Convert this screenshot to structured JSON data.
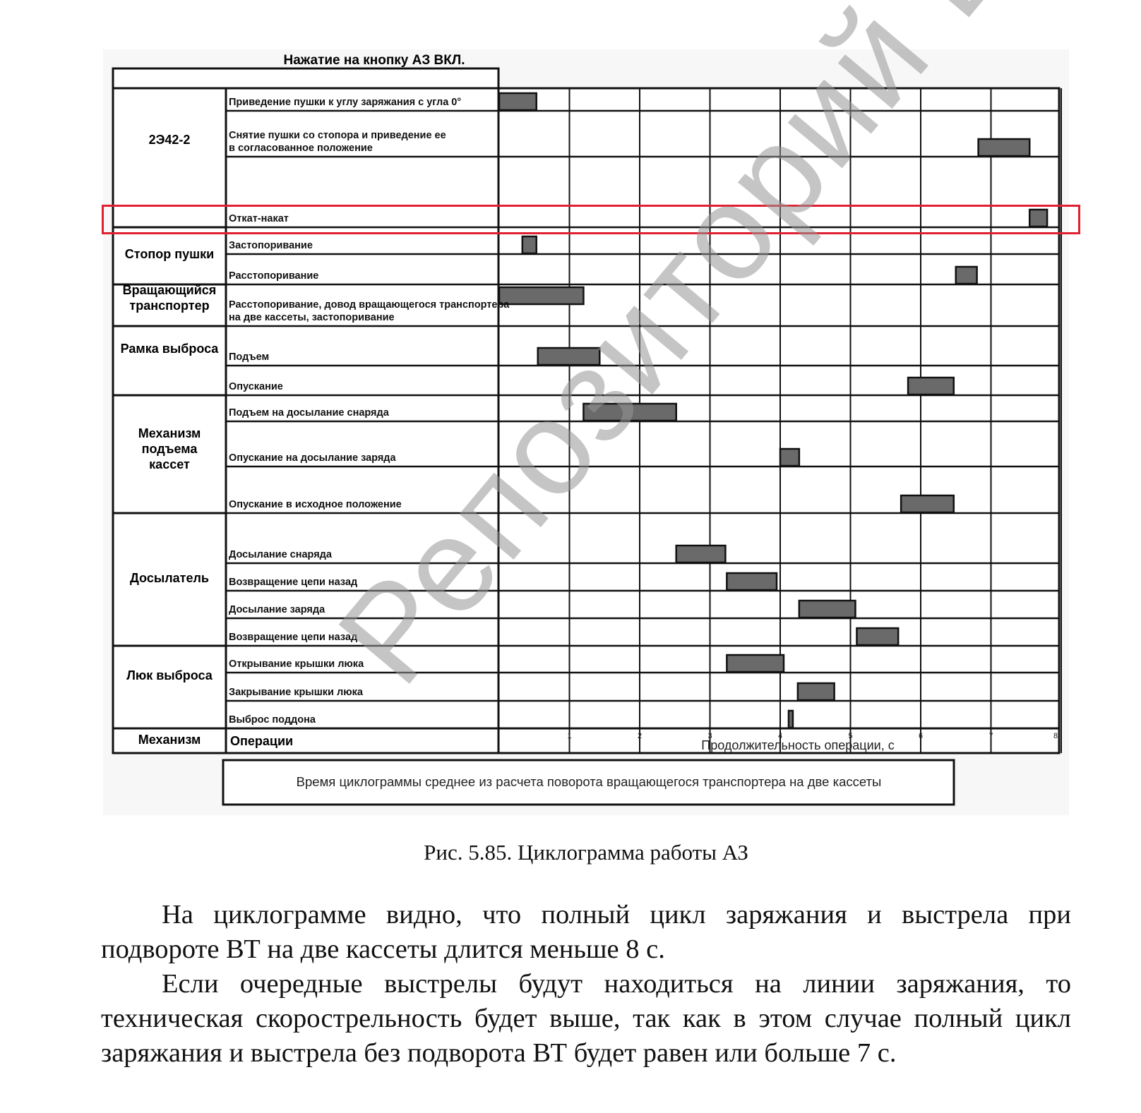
{
  "figure": {
    "title": "Нажатие на кнопку АЗ ВКЛ.",
    "column_headers": {
      "mechanism": "Механизм",
      "operations": "Операции",
      "time_axis": "Продолжительность операции, с"
    },
    "note": "Время циклограммы среднее из расчета поворота вращающегося транспортера на две кассеты",
    "groups": [
      {
        "label": "2Э42-2"
      },
      {
        "label": "Стопор пушки"
      },
      {
        "label": "Вращающийся транспортер"
      },
      {
        "label": "Рамка выброса"
      },
      {
        "label": "Механизм подъема кассет"
      },
      {
        "label": "Досылатель"
      },
      {
        "label": "Люк выброса"
      }
    ],
    "highlight_color": "#e02030",
    "bar_color": "#6a6a6a"
  },
  "chart_data": {
    "type": "gantt",
    "xlabel": "Продолжительность операции, с",
    "xlim": [
      0,
      8
    ],
    "x_ticks": [
      "1",
      "2",
      "3",
      "4",
      "5",
      "6",
      "7",
      "8"
    ],
    "grid": true,
    "highlighted_operation": "Откат-накат",
    "operations": [
      {
        "group": "2Э42-2",
        "label": "Приведение пушки к углу заряжания с угла 0°",
        "start": 0.0,
        "end": 0.53
      },
      {
        "group": "2Э42-2",
        "label": "Снятие пушки со стопора и приведение ее в согласованное положение",
        "start": 6.82,
        "end": 7.55
      },
      {
        "group": "2Э42-2",
        "label": "Откат-накат",
        "start": 7.55,
        "end": 7.8
      },
      {
        "group": "Стопор пушки",
        "label": "Застопоривание",
        "start": 0.33,
        "end": 0.53
      },
      {
        "group": "Стопор пушки",
        "label": "Расстопоривание",
        "start": 6.5,
        "end": 6.8
      },
      {
        "group": "Вращающийся транспортер",
        "label": "Расстопоривание, довод вращающегося транспортера на две кассеты, застопоривание",
        "start": 0.0,
        "end": 1.2
      },
      {
        "group": "Рамка выброса",
        "label": "Подъем",
        "start": 0.55,
        "end": 1.43
      },
      {
        "group": "Рамка выброса",
        "label": "Опускание",
        "start": 5.82,
        "end": 6.47
      },
      {
        "group": "Механизм подъема кассет",
        "label": "Подъем на досылание снаряда",
        "start": 1.2,
        "end": 2.52
      },
      {
        "group": "Механизм подъема кассет",
        "label": "Опускание на досылание заряда",
        "start": 4.0,
        "end": 4.27
      },
      {
        "group": "Механизм подъема кассет",
        "label": "Опускание в исходное положение",
        "start": 5.72,
        "end": 6.47
      },
      {
        "group": "Досылатель",
        "label": "Досылание снаряда",
        "start": 2.52,
        "end": 3.22
      },
      {
        "group": "Досылатель",
        "label": "Возвращение цепи назад",
        "start": 3.24,
        "end": 3.95
      },
      {
        "group": "Досылатель",
        "label": "Досылание заряда",
        "start": 4.27,
        "end": 5.07
      },
      {
        "group": "Досылатель",
        "label": "Возвращение цепи назад",
        "start": 5.09,
        "end": 5.68
      },
      {
        "group": "Люк выброса",
        "label": "Открывание крышки люка",
        "start": 3.24,
        "end": 4.05
      },
      {
        "group": "Люк выброса",
        "label": "Закрывание крышки люка",
        "start": 4.25,
        "end": 4.77
      },
      {
        "group": "Люк выброса",
        "label": "Выброс поддона",
        "start": 4.12,
        "end": 4.18
      }
    ]
  },
  "caption": "Рис. 5.85. Циклограмма работы АЗ",
  "paragraphs": [
    "На циклограмме видно, что полный цикл заряжания и выстрела при подвороте ВТ на две кассеты длится меньше 8 с.",
    "Если очередные выстрелы будут находиться на линии заряжания, то техническая скорострельность будет выше, так как в этом случае полный цикл заряжания и выстрела без подворота ВТ будет равен или больше 7 с."
  ],
  "watermark": "Репозиторий БНТУ"
}
